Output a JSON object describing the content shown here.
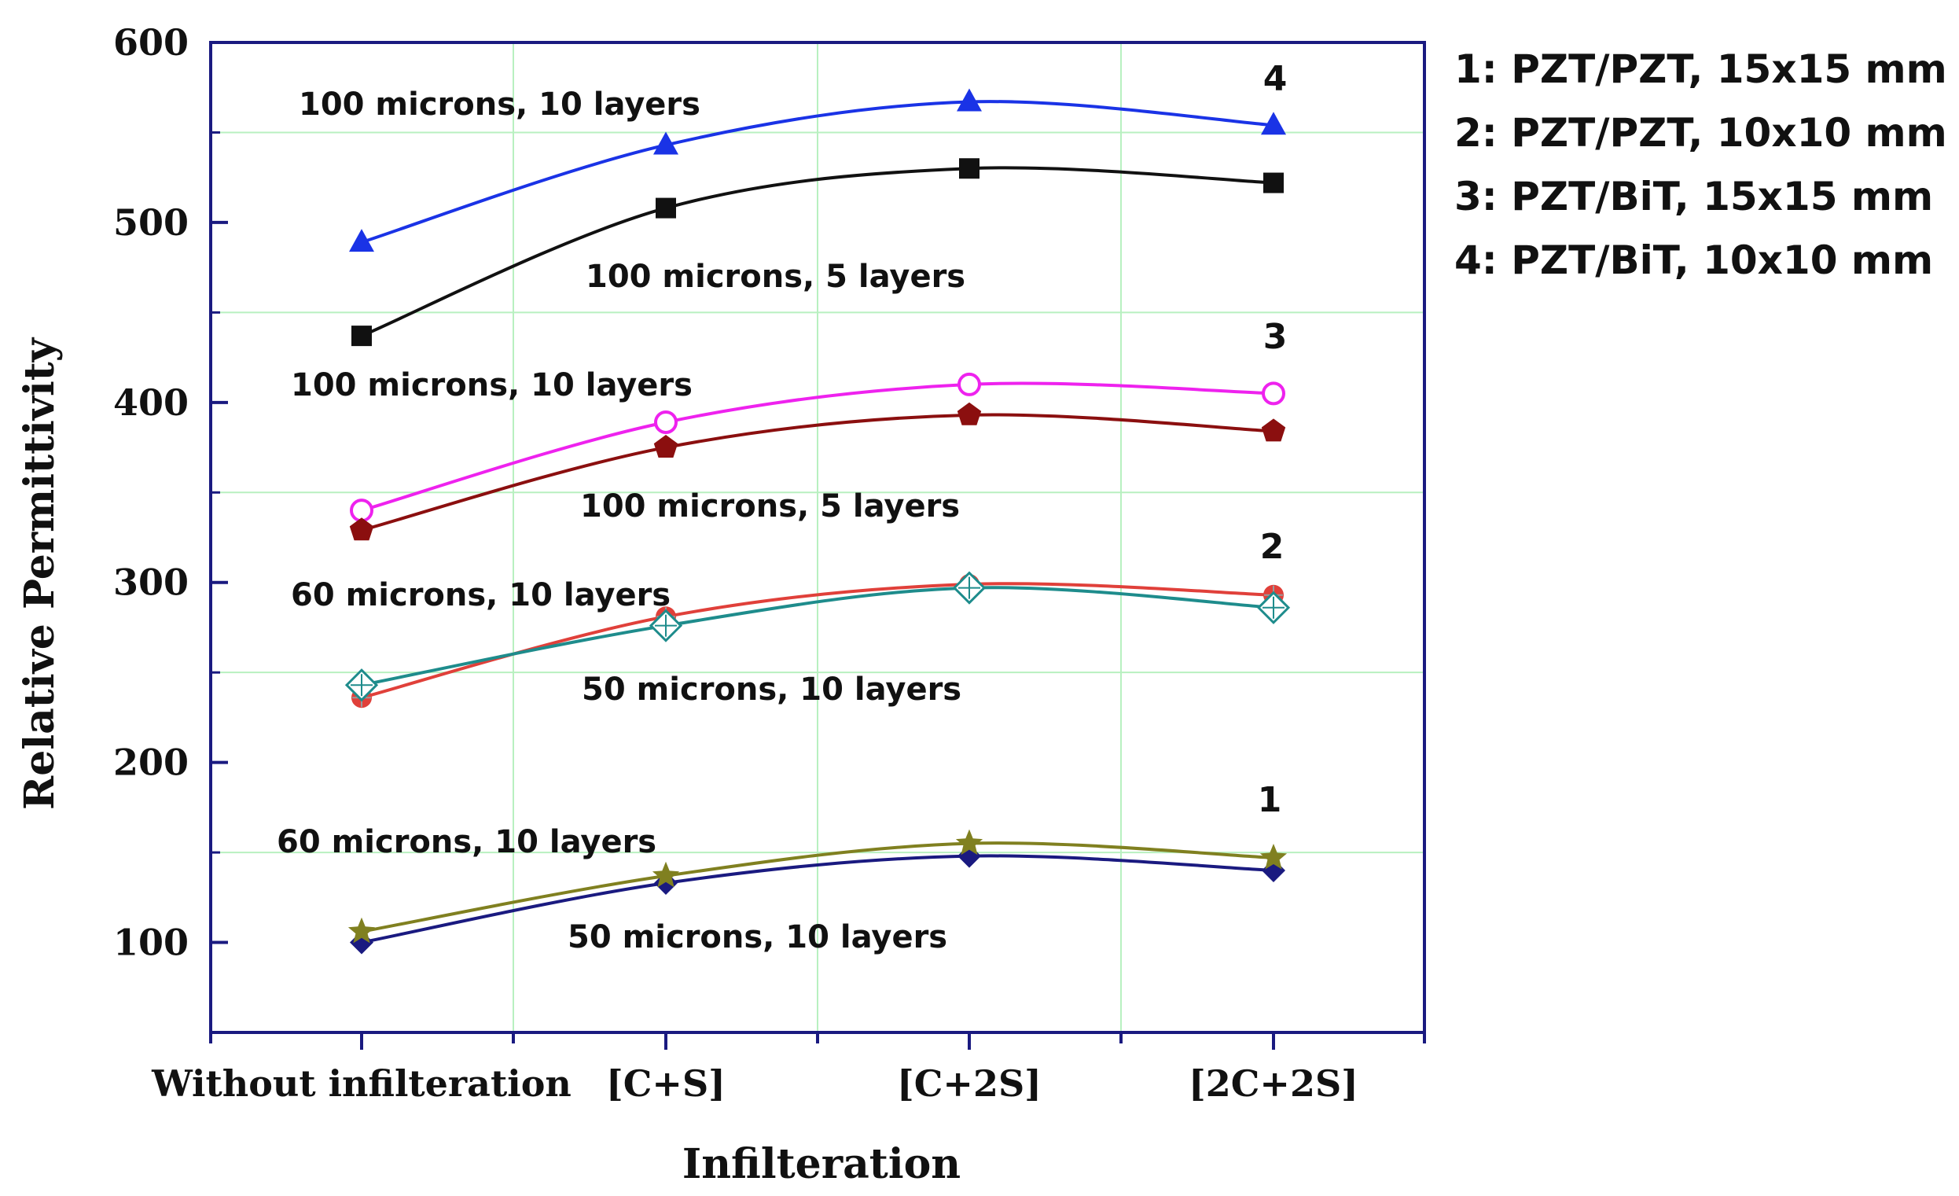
{
  "chart_data": {
    "type": "line",
    "title": "",
    "xlabel": "Infilteration",
    "ylabel": "Relative Permittivity",
    "categories": [
      "Without infilteration",
      "[C+S]",
      "[C+2S]",
      "[2C+2S]"
    ],
    "ylim": [
      50,
      600
    ],
    "yticks": [
      100,
      200,
      300,
      400,
      500,
      600
    ],
    "grid": true,
    "series": [
      {
        "name": "1: 50 microns, 10 layers",
        "group": "1",
        "color": "#1a1a80",
        "marker": "diamond",
        "values": [
          100,
          133,
          148,
          140
        ]
      },
      {
        "name": "1: 60 microns, 10 layers",
        "group": "1",
        "color": "#808020",
        "marker": "star",
        "values": [
          106,
          137,
          155,
          147
        ]
      },
      {
        "name": "2: 60 microns, 10 layers",
        "group": "2",
        "color": "#e0403a",
        "marker": "circle-cross",
        "values": [
          236,
          281,
          299,
          293
        ]
      },
      {
        "name": "2: 50 microns, 10 layers",
        "group": "2",
        "color": "#1e8c8c",
        "marker": "open-diamond-cross",
        "values": [
          243,
          276,
          297,
          286
        ]
      },
      {
        "name": "3: 100 microns, 10 layers",
        "group": "3",
        "color": "#ee22ee",
        "marker": "open-circle",
        "values": [
          340,
          389,
          410,
          405
        ]
      },
      {
        "name": "3: 100 microns, 5 layers",
        "group": "3",
        "color": "#8b0f0f",
        "marker": "pentagon",
        "values": [
          329,
          375,
          393,
          384
        ]
      },
      {
        "name": "4: 100 microns, 5 layers",
        "group": "4",
        "color": "#111111",
        "marker": "square",
        "values": [
          437,
          508,
          530,
          522
        ]
      },
      {
        "name": "4: 100 microns, 10 layers",
        "group": "4",
        "color": "#1a33e6",
        "marker": "triangle",
        "values": [
          489,
          543,
          567,
          554
        ]
      }
    ],
    "annotations": [
      {
        "text": "100 microns, 10  layers",
        "series": 7
      },
      {
        "text": "100 microns, 5 layers",
        "series": 6
      },
      {
        "text": "100 microns, 10 layers",
        "series": 4
      },
      {
        "text": "100 microns, 5 layers",
        "series": 5
      },
      {
        "text": "60 microns, 10 layers",
        "series": 2
      },
      {
        "text": "50 microns, 10 layers",
        "series": 3
      },
      {
        "text": "60 microns, 10 layers",
        "series": 1
      },
      {
        "text": "50 microns, 10 layers",
        "series": 0
      }
    ],
    "group_numbers": [
      "4",
      "3",
      "2",
      "1"
    ],
    "legend": {
      "placement": "top-right-outside",
      "entries": [
        "1: PZT/PZT, 15x15 mm",
        "2: PZT/PZT, 10x10 mm",
        "3: PZT/BiT, 15x15 mm",
        "4: PZT/BiT, 10x10 mm"
      ]
    }
  }
}
